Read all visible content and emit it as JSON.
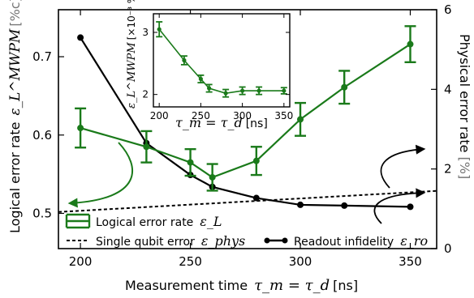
{
  "chart_data": [
    {
      "type": "line",
      "xlabel": "Measurement time",
      "xlabel_math": "τ_m = τ_d",
      "xlabel_unit": "[ns]",
      "ylabel": "Logical error rate",
      "ylabel_math": "ε_L^MWPM",
      "ylabel_unit": "[%c]",
      "y2label": "Physical error rate",
      "y2label_unit": "[%]",
      "xlim": [
        190,
        362
      ],
      "ylim": [
        0.455,
        0.76
      ],
      "y2lim": [
        0,
        6
      ],
      "x_ticks": [
        "200",
        "250",
        "300",
        "350"
      ],
      "y_ticks": [
        "0.5",
        "0.6",
        "0.7"
      ],
      "y2_ticks": [
        "0",
        "2",
        "4",
        "6"
      ],
      "grid": false,
      "series": [
        {
          "name": "Logical error rate ε_L",
          "axis": "left",
          "color": "#1a7a1a",
          "marker": "circle",
          "x": [
            200,
            230,
            250,
            260,
            280,
            300,
            320,
            350
          ],
          "y": [
            0.609,
            0.585,
            0.565,
            0.546,
            0.567,
            0.62,
            0.661,
            0.716
          ],
          "err": [
            0.025,
            0.02,
            0.017,
            0.017,
            0.018,
            0.021,
            0.021,
            0.023
          ]
        },
        {
          "name": "Single qubit error ε_phys",
          "axis": "right",
          "color": "#000000",
          "style": "dashed",
          "x": [
            190,
            362
          ],
          "y": [
            0.92,
            1.45
          ]
        },
        {
          "name": "Readout infidelity ε_ro",
          "axis": "right",
          "color": "#000000",
          "marker": "circle",
          "x": [
            200,
            230,
            250,
            260,
            280,
            300,
            320,
            350
          ],
          "y": [
            5.3,
            2.65,
            1.85,
            1.55,
            1.27,
            1.1,
            1.08,
            1.05
          ]
        }
      ],
      "legend": [
        "Logical error rate",
        "ε_L",
        "Single qubit error",
        "ε_phys",
        "Readout infidelity",
        "ε_ro"
      ],
      "legend_placement": "bottom-left"
    },
    {
      "type": "line",
      "role": "inset",
      "xlabel_math": "τ_m = τ_d",
      "xlabel_unit": "[ns]",
      "ylabel_math": "ε_L^MWPM",
      "ylabel_unit": "[×10⁻³ %c ns⁻¹]",
      "xlim": [
        193,
        357
      ],
      "ylim": [
        1.8,
        3.3
      ],
      "x_ticks": [
        "200",
        "250",
        "300",
        "350"
      ],
      "y_ticks": [
        "2",
        "3"
      ],
      "series": [
        {
          "color": "#1a7a1a",
          "marker": "circle",
          "x": [
            200,
            230,
            250,
            260,
            280,
            300,
            320,
            350
          ],
          "y": [
            3.05,
            2.55,
            2.25,
            2.1,
            2.02,
            2.06,
            2.06,
            2.06
          ],
          "err": [
            0.12,
            0.07,
            0.06,
            0.06,
            0.06,
            0.06,
            0.06,
            0.05
          ]
        }
      ]
    }
  ]
}
